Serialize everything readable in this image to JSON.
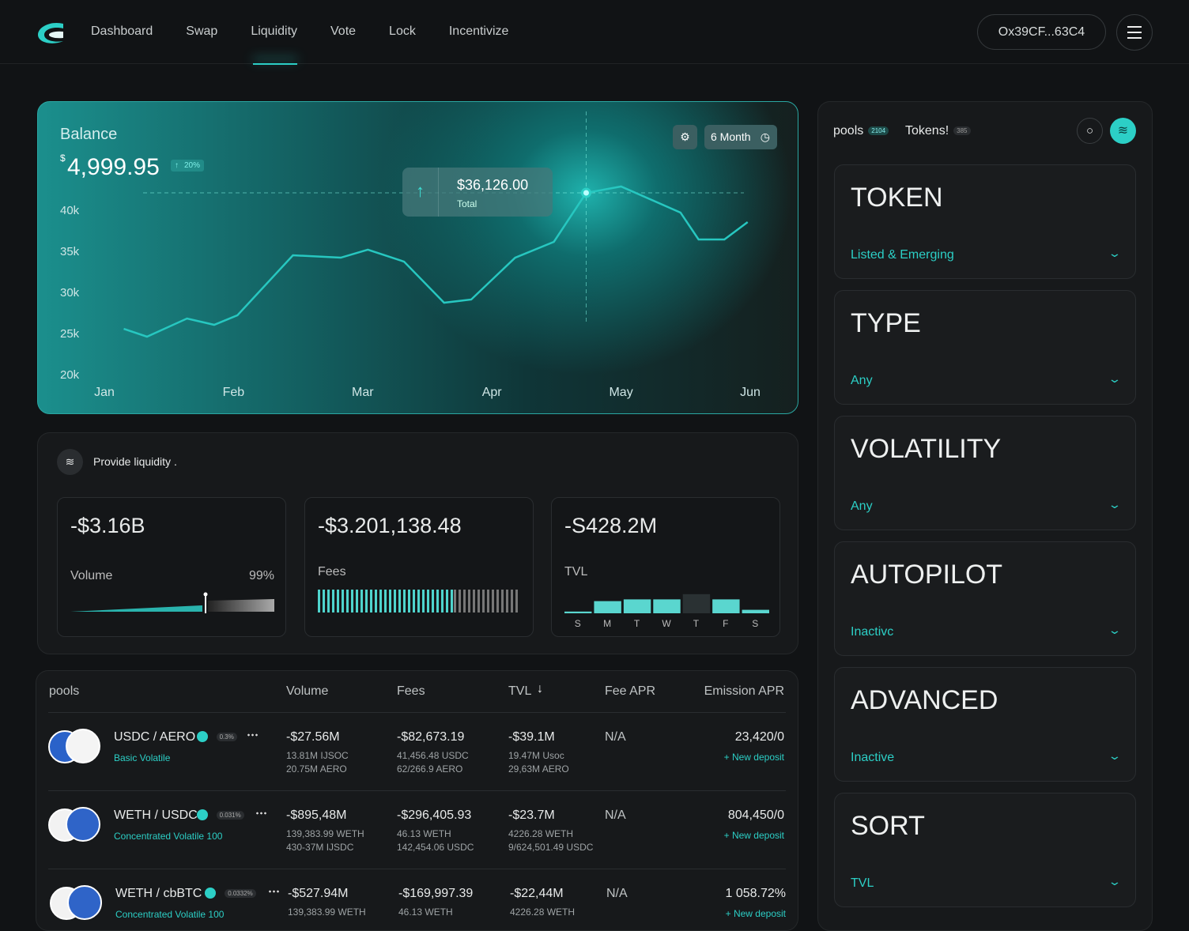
{
  "nav": {
    "links": [
      "Dashboard",
      "Swap",
      "Liquidity",
      "Vote",
      "Lock",
      "Incentivize"
    ],
    "active": 2,
    "wallet": "Ox39CF...63C4"
  },
  "balance": {
    "title": "Balance",
    "currency": "$",
    "amount": "4,999.95",
    "change": "20%",
    "period": "6 Month",
    "tooltip": {
      "value": "$36,126.00",
      "label": "Total",
      "point": 13
    },
    "chart_data": {
      "type": "line",
      "x": [
        0.15,
        0.33,
        0.64,
        0.85,
        1.03,
        1.46,
        1.83,
        2.04,
        2.32,
        2.63,
        2.84,
        3.18,
        3.48,
        3.73,
        4.0,
        4.46,
        4.6,
        4.8,
        4.98
      ],
      "series": [
        {
          "color": "#27c7c0",
          "values": [
            25480,
            24520,
            26730,
            25960,
            27120,
            34420,
            34130,
            35100,
            33650,
            28650,
            29040,
            34130,
            36060,
            42020,
            42790,
            39620,
            36350,
            36350,
            38460
          ]
        }
      ],
      "xlim": [
        0,
        5
      ],
      "xticks": [
        {
          "value": 0,
          "label": "Jan"
        },
        {
          "value": 1,
          "label": "Feb"
        },
        {
          "value": 2,
          "label": "Mar"
        },
        {
          "value": 3,
          "label": "Apr"
        },
        {
          "value": 4,
          "label": "May"
        },
        {
          "value": 5,
          "label": "Jun"
        }
      ],
      "ylim": [
        20000,
        40000
      ],
      "yticks": [
        {
          "value": 20000,
          "label": "20k"
        },
        {
          "value": 25000,
          "label": "25k"
        },
        {
          "value": 30000,
          "label": "30k"
        },
        {
          "value": 35000,
          "label": "35k"
        },
        {
          "value": 40000,
          "label": "40k"
        }
      ]
    }
  },
  "liquidity": {
    "title": "Provide liquidity .",
    "cards": [
      {
        "value": "-$3.16B",
        "label": "Volume",
        "percent": "99%"
      },
      {
        "value": "-$3.201,138.48",
        "label": "Fees"
      },
      {
        "value": "-S428.2M",
        "label": "TVL",
        "days": [
          "S",
          "M",
          "T",
          "W",
          "T",
          "F",
          "S"
        ],
        "day_values": [
          2,
          14,
          16,
          16,
          22,
          16,
          4
        ]
      }
    ]
  },
  "table": {
    "headers": [
      "pools",
      "Volume",
      "Fees",
      "TVL",
      "Fee APR",
      "Emission APR"
    ],
    "rows": [
      {
        "pair": "USDC / AERO",
        "fee": "0.3%",
        "kind": "Basic Volatile",
        "volume": "-$27.56M",
        "volume_sub": [
          "13.81M IJSOC",
          "20.75M AERO"
        ],
        "fees": "-$82,673.19",
        "fees_sub": [
          "41,456.48 USDC",
          "62/266.9 AERO"
        ],
        "tvl": "-$39.1M",
        "tvl_sub": [
          "19.47M Usoc",
          "29,63M AERO"
        ],
        "fee_apr": "N/A",
        "emission": "23,420/0",
        "action": "+ New deposit"
      },
      {
        "pair": "WETH / USDC",
        "fee": "0.031%",
        "kind": "Concentrated Volatile 100",
        "volume": "-$895,48M",
        "volume_sub": [
          "139,383.99 WETH",
          "430-37M IJSDC"
        ],
        "fees": "-$296,405.93",
        "fees_sub": [
          "46.13 WETH",
          "142,454.06 USDC"
        ],
        "tvl": "-$23.7M",
        "tvl_sub": [
          "4226.28 WETH",
          "9/624,501.49 USDC"
        ],
        "fee_apr": "N/A",
        "emission": "804,450/0",
        "action": "+ New deposit"
      },
      {
        "pair": "WETH / cbBTC",
        "fee": "0.0332%",
        "kind": "Concentrated Volatile 100",
        "volume": "-$527.94M",
        "volume_sub": [
          "139,383.99 WETH"
        ],
        "fees": "-$169,997.39",
        "fees_sub": [
          "46.13 WETH"
        ],
        "tvl": "-$22,44M",
        "tvl_sub": [
          "4226.28 WETH"
        ],
        "fee_apr": "N/A",
        "emission": "1 058.72%",
        "action": "+ New deposit"
      }
    ]
  },
  "sidebar": {
    "tabs": [
      {
        "label": "pools",
        "count": "2104"
      },
      {
        "label": "Tokens!",
        "count": "385"
      }
    ],
    "filters": [
      {
        "title": "TOKEN",
        "value": "Listed & Emerging"
      },
      {
        "title": "TYPE",
        "value": "Any"
      },
      {
        "title": "VOLATILITY",
        "value": "Any"
      },
      {
        "title": "AUTOPILOT",
        "value": "Inactivc"
      },
      {
        "title": "ADVANCED",
        "value": "Inactive"
      },
      {
        "title": "SORT",
        "value": "TVL"
      }
    ]
  }
}
